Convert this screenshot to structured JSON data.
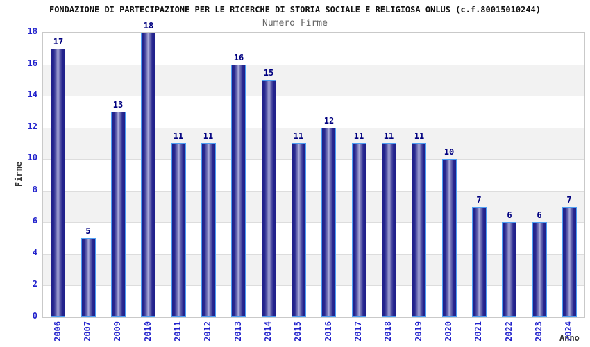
{
  "chart_data": {
    "type": "bar",
    "title": "FONDAZIONE DI PARTECIPAZIONE PER LE RICERCHE DI STORIA SOCIALE E RELIGIOSA ONLUS (c.f.80015010244)",
    "subtitle": "Numero Firme",
    "xlabel": "Anno",
    "ylabel": "Firme",
    "categories": [
      "2006",
      "2007",
      "2009",
      "2010",
      "2011",
      "2012",
      "2013",
      "2014",
      "2015",
      "2016",
      "2017",
      "2018",
      "2019",
      "2020",
      "2021",
      "2022",
      "2023",
      "2024"
    ],
    "values": [
      17,
      5,
      13,
      18,
      11,
      11,
      16,
      15,
      11,
      12,
      11,
      11,
      11,
      10,
      7,
      6,
      6,
      7
    ],
    "ylim": [
      0,
      18
    ],
    "ytick_step": 2,
    "yticks": [
      0,
      2,
      4,
      6,
      8,
      10,
      12,
      14,
      16,
      18
    ],
    "grid": "horizontal",
    "legend": "none",
    "band_pattern": "alternating gray bands between even gridlines, white band at top (16-18) and bottom (0-2)",
    "colors": {
      "bar_dark": "#20208a",
      "bar_light": "#aeaedd",
      "bar_border": "#4d9df2",
      "tick_label": "#2222cc",
      "value_label": "#000080",
      "band_gray": "#f2f2f2",
      "gridline": "#dddddd",
      "title": "#111111",
      "subtitle": "#666666",
      "axis_label": "#333333",
      "background": "#ffffff"
    }
  }
}
